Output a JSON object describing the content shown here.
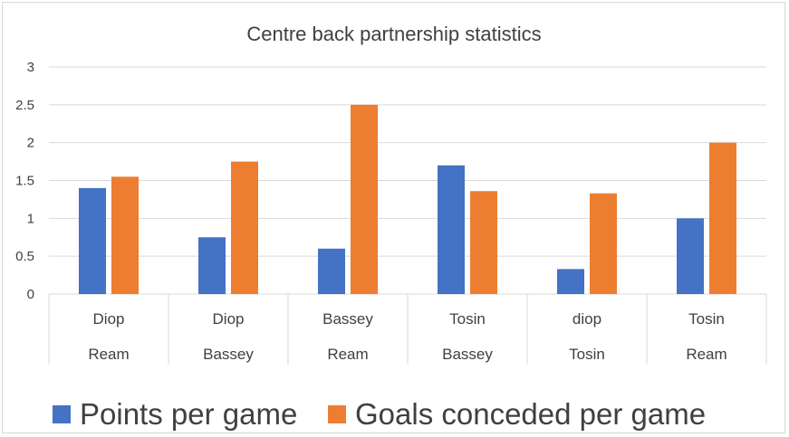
{
  "chart_data": {
    "type": "bar",
    "title": "Centre back partnership statistics",
    "categories": [
      [
        "Diop",
        "Ream"
      ],
      [
        "Diop",
        "Bassey"
      ],
      [
        "Bassey",
        "Ream"
      ],
      [
        "Tosin",
        "Bassey"
      ],
      [
        "diop",
        "Tosin"
      ],
      [
        "Tosin",
        "Ream"
      ]
    ],
    "series": [
      {
        "name": "Points per game",
        "color": "#4472c4",
        "values": [
          1.4,
          0.75,
          0.6,
          1.7,
          0.33,
          1.0
        ]
      },
      {
        "name": "Goals conceded per game",
        "color": "#ed7d31",
        "values": [
          1.55,
          1.75,
          2.5,
          1.36,
          1.33,
          2.0
        ]
      }
    ],
    "yticks": [
      "0",
      "0.5",
      "1",
      "1.5",
      "2",
      "2.5",
      "3"
    ],
    "ylim": [
      0,
      3
    ],
    "grid": true,
    "legend": "bottom"
  }
}
